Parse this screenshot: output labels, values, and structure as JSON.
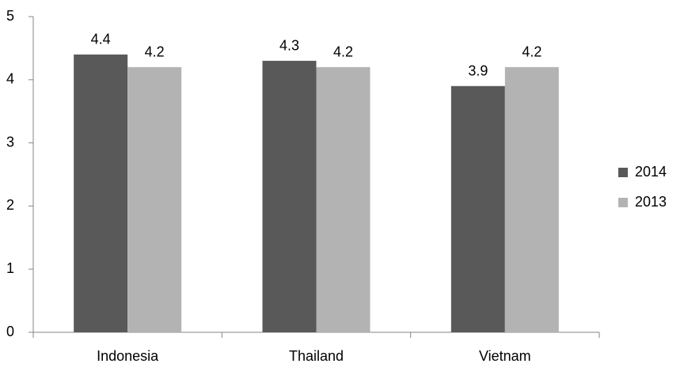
{
  "chart_data": {
    "type": "bar",
    "categories": [
      "Indonesia",
      "Thailand",
      "Vietnam"
    ],
    "series": [
      {
        "name": "2014",
        "color": "#595959",
        "values": [
          4.4,
          4.3,
          3.9
        ]
      },
      {
        "name": "2013",
        "color": "#b3b3b3",
        "values": [
          4.2,
          4.2,
          4.2
        ]
      }
    ],
    "ylim": [
      0,
      5
    ],
    "yticks": [
      0,
      1,
      2,
      3,
      4,
      5
    ],
    "grid": false,
    "legend": "right"
  }
}
